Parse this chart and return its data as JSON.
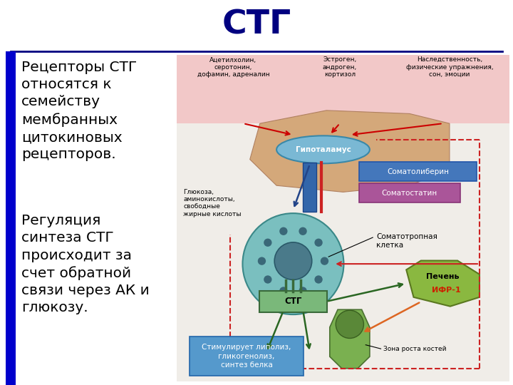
{
  "title": "СТГ",
  "title_color": "#000080",
  "title_fontsize": 34,
  "title_fontweight": "bold",
  "bg_color": "#ffffff",
  "text_color": "#000000",
  "text_fontsize": 14.5,
  "paragraph1": "Рецепторы СТГ\nотносятся к\nсемейству\nмембранных\nцитокиновых\nрецепторов.",
  "paragraph2": "Регуляция\nсинтеза СТГ\nпроисходит за\nсчет обратной\nсвязи через АК и\nглюкозу.",
  "line_color": "#000080",
  "left_bar_color": "#0000cc",
  "pink_bg": "#f2c8c8",
  "hypo_color": "#7ab8d4",
  "cell_color": "#7abfbf",
  "nucleus_color": "#4a7a8a",
  "dot_color": "#3a6878",
  "stg_box_color": "#7ab87a",
  "somatoliberin_color": "#4477bb",
  "somatostatin_color": "#aa5599",
  "liver_color": "#8ab840",
  "bone_color": "#7ab050",
  "stim_box_color": "#5599cc",
  "dash_color": "#cc2222",
  "arrow_dark_green": "#2a6622",
  "arrow_red": "#cc0000",
  "arrow_blue_dark": "#224488",
  "orange_arrow": "#dd6622"
}
